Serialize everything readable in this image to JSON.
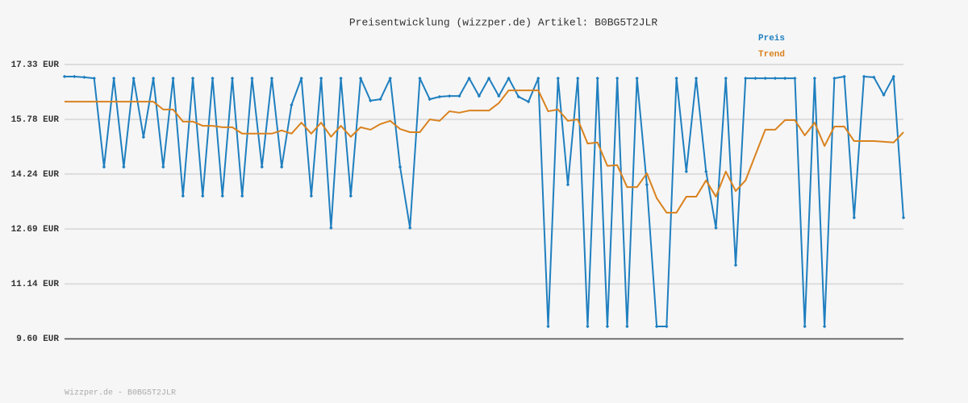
{
  "chart_data": {
    "type": "line",
    "title": "Preisentwicklung (wizzper.de) Artikel: B0BG5T2JLR",
    "footer": "Wizzper.de - B0BG5T2JLR",
    "categories": [
      null,
      null,
      null,
      null,
      null,
      null,
      null,
      null,
      null,
      null,
      null,
      null,
      null,
      null,
      null,
      null,
      null,
      null,
      null,
      null,
      null,
      null,
      null,
      null,
      null,
      null,
      null,
      null,
      null,
      null,
      null,
      null,
      null,
      null,
      null,
      null,
      null,
      null,
      null,
      null,
      null,
      null,
      null,
      null,
      null,
      null,
      null,
      null,
      null,
      null,
      null,
      null,
      null,
      null,
      null,
      null,
      null,
      null,
      null,
      null,
      null,
      null,
      null,
      null,
      null,
      null,
      null,
      null,
      null,
      null,
      null,
      null,
      null,
      null,
      null,
      null,
      null,
      null,
      null,
      null,
      null,
      null,
      null,
      null,
      null,
      null
    ],
    "ylim": [
      9.6,
      17.33
    ],
    "yticks": [
      {
        "value": 9.6,
        "label": "9.60 EUR"
      },
      {
        "value": 11.14,
        "label": "11.14 EUR"
      },
      {
        "value": 12.69,
        "label": "12.69 EUR"
      },
      {
        "value": 14.24,
        "label": "14.24 EUR"
      },
      {
        "value": 15.78,
        "label": "15.78 EUR"
      },
      {
        "value": 17.33,
        "label": "17.33 EUR"
      }
    ],
    "grid": true,
    "legend": "top-right",
    "series": [
      {
        "name": "Preis",
        "color": "#1f7fbf",
        "markers": true,
        "values": [
          16.99,
          16.99,
          16.97,
          16.94,
          14.44,
          16.94,
          14.44,
          16.94,
          15.28,
          16.94,
          14.44,
          16.94,
          13.62,
          16.94,
          13.62,
          16.94,
          13.62,
          16.94,
          13.62,
          16.94,
          14.44,
          16.94,
          14.44,
          16.19,
          16.94,
          13.62,
          16.94,
          12.72,
          16.94,
          13.62,
          16.94,
          16.31,
          16.35,
          16.94,
          14.44,
          12.72,
          16.94,
          16.35,
          16.42,
          16.44,
          16.44,
          16.94,
          16.44,
          16.94,
          16.44,
          16.94,
          16.42,
          16.28,
          16.94,
          9.94,
          16.94,
          13.94,
          16.94,
          9.94,
          16.94,
          9.94,
          16.94,
          9.94,
          16.94,
          13.94,
          9.94,
          9.94,
          16.94,
          14.31,
          16.94,
          14.31,
          12.72,
          16.94,
          11.67,
          16.94,
          16.94,
          16.94,
          16.94,
          16.94,
          16.94,
          9.94,
          16.94,
          9.94,
          16.94,
          16.99,
          13.01,
          16.99,
          16.97,
          16.47,
          16.99,
          13.01
        ]
      },
      {
        "name": "Trend",
        "color": "#d9821e",
        "markers": false,
        "values": [
          16.28,
          16.28,
          16.28,
          16.28,
          16.28,
          16.28,
          16.28,
          16.28,
          16.28,
          16.28,
          16.06,
          16.06,
          15.72,
          15.72,
          15.6,
          15.6,
          15.56,
          15.56,
          15.38,
          15.38,
          15.38,
          15.38,
          15.47,
          15.38,
          15.69,
          15.38,
          15.69,
          15.29,
          15.6,
          15.29,
          15.56,
          15.49,
          15.65,
          15.74,
          15.51,
          15.42,
          15.42,
          15.78,
          15.74,
          16.01,
          15.97,
          16.03,
          16.03,
          16.03,
          16.24,
          16.6,
          16.6,
          16.6,
          16.6,
          16.01,
          16.06,
          15.74,
          15.78,
          15.1,
          15.13,
          14.47,
          14.49,
          13.87,
          13.87,
          14.26,
          13.56,
          13.15,
          13.15,
          13.6,
          13.6,
          14.06,
          13.6,
          14.31,
          13.76,
          14.06,
          14.78,
          15.49,
          15.49,
          15.76,
          15.76,
          15.33,
          15.69,
          15.03,
          15.58,
          15.58,
          15.17,
          15.17,
          15.17,
          15.15,
          15.13,
          15.42
        ]
      }
    ]
  }
}
